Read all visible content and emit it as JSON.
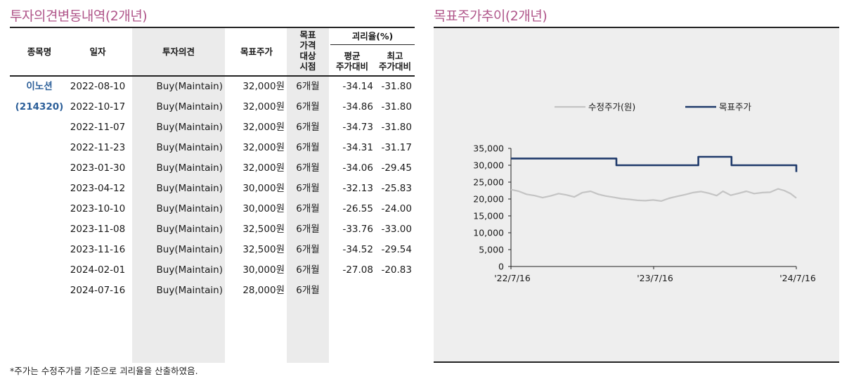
{
  "left_section": {
    "title": "투자의견변동내역(2개년)",
    "headers": {
      "name": "종목명",
      "date": "일자",
      "opinion": "투자의견",
      "target": "목표주가",
      "period_lines": [
        "목표",
        "가격",
        "대상",
        "시점"
      ],
      "divergence": "괴리율(%)",
      "avg_lines": [
        "평균",
        "주가대비"
      ],
      "max_lines": [
        "최고",
        "주가대비"
      ]
    },
    "stock_name": "이노션",
    "stock_code": "(214320)",
    "rows": [
      {
        "date": "2022-08-10",
        "opinion": "Buy(Maintain)",
        "target": "32,000원",
        "period": "6개월",
        "avg": "-34.14",
        "max": "-31.80"
      },
      {
        "date": "2022-10-17",
        "opinion": "Buy(Maintain)",
        "target": "32,000원",
        "period": "6개월",
        "avg": "-34.86",
        "max": "-31.80"
      },
      {
        "date": "2022-11-07",
        "opinion": "Buy(Maintain)",
        "target": "32,000원",
        "period": "6개월",
        "avg": "-34.73",
        "max": "-31.80"
      },
      {
        "date": "2022-11-23",
        "opinion": "Buy(Maintain)",
        "target": "32,000원",
        "period": "6개월",
        "avg": "-34.31",
        "max": "-31.17"
      },
      {
        "date": "2023-01-30",
        "opinion": "Buy(Maintain)",
        "target": "32,000원",
        "period": "6개월",
        "avg": "-34.06",
        "max": "-29.45"
      },
      {
        "date": "2023-04-12",
        "opinion": "Buy(Maintain)",
        "target": "30,000원",
        "period": "6개월",
        "avg": "-32.13",
        "max": "-25.83"
      },
      {
        "date": "2023-10-10",
        "opinion": "Buy(Maintain)",
        "target": "30,000원",
        "period": "6개월",
        "avg": "-26.55",
        "max": "-24.00"
      },
      {
        "date": "2023-11-08",
        "opinion": "Buy(Maintain)",
        "target": "32,500원",
        "period": "6개월",
        "avg": "-33.76",
        "max": "-33.00"
      },
      {
        "date": "2023-11-16",
        "opinion": "Buy(Maintain)",
        "target": "32,500원",
        "period": "6개월",
        "avg": "-34.52",
        "max": "-29.54"
      },
      {
        "date": "2024-02-01",
        "opinion": "Buy(Maintain)",
        "target": "30,000원",
        "period": "6개월",
        "avg": "-27.08",
        "max": "-20.83"
      },
      {
        "date": "2024-07-16",
        "opinion": "Buy(Maintain)",
        "target": "28,000원",
        "period": "6개월",
        "avg": "",
        "max": ""
      }
    ],
    "footnote": "*주가는 수정주가를 기준으로 괴리율을 산출하였음."
  },
  "right_section": {
    "title": "목표주가추이(2개년)"
  },
  "chart_data": {
    "type": "line",
    "title": "",
    "xlabel": "",
    "ylabel": "",
    "ylim": [
      0,
      35000
    ],
    "y_ticks": [
      "0",
      "5,000",
      "10,000",
      "15,000",
      "20,000",
      "25,000",
      "30,000",
      "35,000"
    ],
    "y_tick_values": [
      0,
      5000,
      10000,
      15000,
      20000,
      25000,
      30000,
      35000
    ],
    "x_ticks": [
      "'22/7/16",
      "'23/7/16",
      "'24/7/16"
    ],
    "x_range": [
      "2022-07-16",
      "2024-07-16"
    ],
    "grid": false,
    "legend_position": "top",
    "series": [
      {
        "name": "수정주가(원)",
        "color": "#c4c4c4",
        "style": "line",
        "points": [
          [
            "2022-07-16",
            22800
          ],
          [
            "2022-08-05",
            22300
          ],
          [
            "2022-08-25",
            21400
          ],
          [
            "2022-09-15",
            21000
          ],
          [
            "2022-10-05",
            20400
          ],
          [
            "2022-10-25",
            20900
          ],
          [
            "2022-11-15",
            21600
          ],
          [
            "2022-12-05",
            21200
          ],
          [
            "2022-12-25",
            20600
          ],
          [
            "2023-01-15",
            21900
          ],
          [
            "2023-02-05",
            22300
          ],
          [
            "2023-02-25",
            21400
          ],
          [
            "2023-03-15",
            20900
          ],
          [
            "2023-04-05",
            20500
          ],
          [
            "2023-04-25",
            20100
          ],
          [
            "2023-05-15",
            19900
          ],
          [
            "2023-06-05",
            19600
          ],
          [
            "2023-06-25",
            19500
          ],
          [
            "2023-07-15",
            19700
          ],
          [
            "2023-08-05",
            19400
          ],
          [
            "2023-08-25",
            20200
          ],
          [
            "2023-09-15",
            20800
          ],
          [
            "2023-10-05",
            21300
          ],
          [
            "2023-10-25",
            21900
          ],
          [
            "2023-11-15",
            22200
          ],
          [
            "2023-12-05",
            21700
          ],
          [
            "2023-12-25",
            21000
          ],
          [
            "2024-01-10",
            22300
          ],
          [
            "2024-01-30",
            21100
          ],
          [
            "2024-02-20",
            21700
          ],
          [
            "2024-03-10",
            22300
          ],
          [
            "2024-03-30",
            21600
          ],
          [
            "2024-04-20",
            21900
          ],
          [
            "2024-05-10",
            22000
          ],
          [
            "2024-05-30",
            23000
          ],
          [
            "2024-06-15",
            22500
          ],
          [
            "2024-07-01",
            21600
          ],
          [
            "2024-07-16",
            20300
          ]
        ]
      },
      {
        "name": "목표주가",
        "color": "#1f3a6b",
        "style": "step",
        "points": [
          [
            "2022-07-16",
            32000
          ],
          [
            "2023-04-12",
            30000
          ],
          [
            "2023-11-08",
            32500
          ],
          [
            "2024-02-01",
            30000
          ],
          [
            "2024-07-16",
            28000
          ]
        ]
      }
    ]
  }
}
